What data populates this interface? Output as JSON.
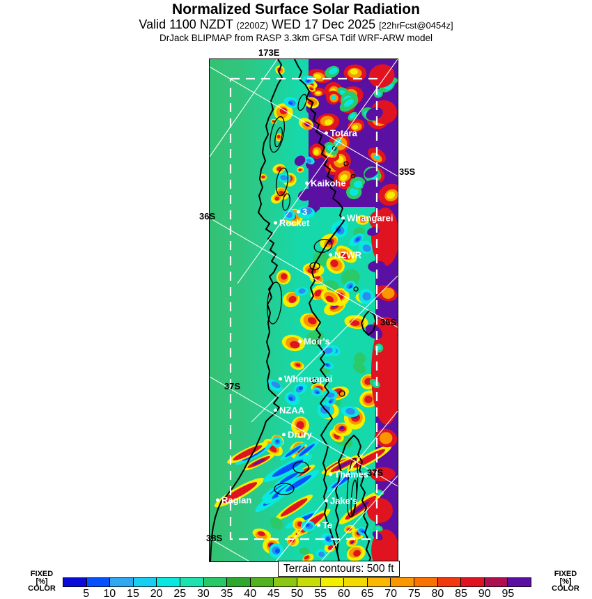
{
  "title": {
    "main": "Normalized Surface Solar Radiation",
    "valid_prefix": "Valid 1100 NZDT",
    "valid_z": "(2200Z)",
    "valid_date": "WED 17 Dec 2025",
    "valid_fcst": "[22hrFcst@0454z]",
    "model_line": "DrJack BLIPMAP from RASP 3.3km GFSA Tdif WRF-ARW model"
  },
  "map": {
    "graticule_labels": {
      "lon_173e": "173E",
      "lat_35s": "35S",
      "lat_36s_left": "36S",
      "lat_36s_inner": "36S",
      "lat_37s_inner_left": "37S",
      "lat_37s_inner_right": "37S",
      "lat_38s": "38S"
    },
    "cities": [
      {
        "label": "Totara"
      },
      {
        "label": "Kaikohe"
      },
      {
        "label": "3"
      },
      {
        "label": "Rocket"
      },
      {
        "label": "Whangarei"
      },
      {
        "label": "NZWR"
      },
      {
        "label": "Moir's"
      },
      {
        "label": "Whenuapai"
      },
      {
        "label": "NZAA"
      },
      {
        "label": "Drury"
      },
      {
        "label": "Thames"
      },
      {
        "label": "Raglan"
      },
      {
        "label": "Jake's"
      },
      {
        "label": "Te"
      }
    ]
  },
  "terrain_note": "Terrain contours: 500 ft",
  "colorbar": {
    "caption_lines": [
      "FIXED",
      "[%]",
      "COLOR"
    ],
    "ticks": [
      5,
      10,
      15,
      20,
      25,
      30,
      35,
      40,
      45,
      50,
      55,
      60,
      65,
      70,
      75,
      80,
      85,
      90,
      95
    ],
    "colors": [
      "#0b0bd8",
      "#0550ff",
      "#2fa8ef",
      "#18cdf2",
      "#09e8e0",
      "#1ce3ae",
      "#27c868",
      "#2ca82c",
      "#51b11e",
      "#8cc813",
      "#c8dc0a",
      "#f3ef00",
      "#f3da00",
      "#fcb800",
      "#fa9600",
      "#f97200",
      "#f2380f",
      "#e01420",
      "#ae0f50",
      "#5a10a2"
    ],
    "map_palette": {
      "sea_green": "#33c273",
      "sea_teal": "#16d9ab",
      "hot_yellow": "#f3ef00",
      "hot_orange": "#fa9600",
      "hot_red": "#e01420",
      "hot_purple": "#5a10a2",
      "cold_cyan": "#09e8e0",
      "cold_blue": "#0550ff"
    }
  }
}
